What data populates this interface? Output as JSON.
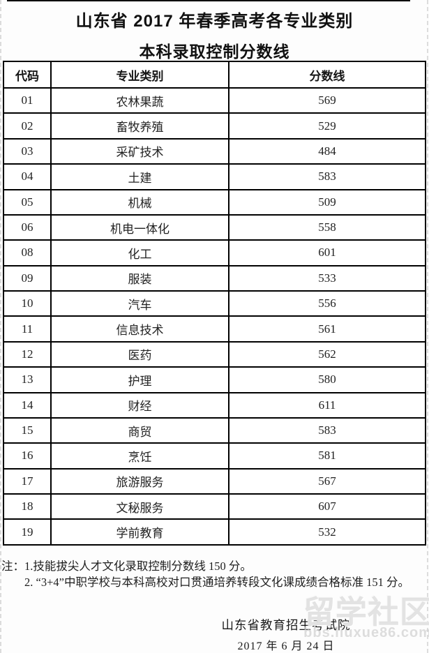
{
  "page": {
    "title_line1": "山东省 2017 年春季高考各专业类别",
    "title_line2": "本科录取控制分数线"
  },
  "table": {
    "headers": [
      "代码",
      "专业类别",
      "分数线"
    ],
    "rows": [
      {
        "code": "01",
        "major": "农林果蔬",
        "score": "569"
      },
      {
        "code": "02",
        "major": "畜牧养殖",
        "score": "529"
      },
      {
        "code": "03",
        "major": "采矿技术",
        "score": "484"
      },
      {
        "code": "04",
        "major": "土建",
        "score": "583"
      },
      {
        "code": "05",
        "major": "机械",
        "score": "509"
      },
      {
        "code": "06",
        "major": "机电一体化",
        "score": "558"
      },
      {
        "code": "08",
        "major": "化工",
        "score": "601"
      },
      {
        "code": "09",
        "major": "服装",
        "score": "533"
      },
      {
        "code": "10",
        "major": "汽车",
        "score": "556"
      },
      {
        "code": "11",
        "major": "信息技术",
        "score": "561"
      },
      {
        "code": "12",
        "major": "医药",
        "score": "562"
      },
      {
        "code": "13",
        "major": "护理",
        "score": "580"
      },
      {
        "code": "14",
        "major": "财经",
        "score": "611"
      },
      {
        "code": "15",
        "major": "商贸",
        "score": "583"
      },
      {
        "code": "16",
        "major": "烹饪",
        "score": "581"
      },
      {
        "code": "17",
        "major": "旅游服务",
        "score": "567"
      },
      {
        "code": "18",
        "major": "文秘服务",
        "score": "607"
      },
      {
        "code": "19",
        "major": "学前教育",
        "score": "532"
      }
    ]
  },
  "notes": {
    "line1": "注：1.技能拔尖人才文化录取控制分数线 150 分。",
    "line2": "2. “3+4”中职学校与本科高校对口贯通培养转段文化课成绩合格标准 151 分。"
  },
  "footer": {
    "issuer": "山东省教育招生考试院",
    "date": "2017 年 6 月 24 日"
  },
  "watermark": {
    "logo_text": "留学社区",
    "url_text": "bbs.liuxue86.com"
  },
  "colors": {
    "table_border": "#000000",
    "text": "#1c1c1c",
    "watermark_gray": "#d6d6d6",
    "page_background": "#fdfdfd"
  }
}
